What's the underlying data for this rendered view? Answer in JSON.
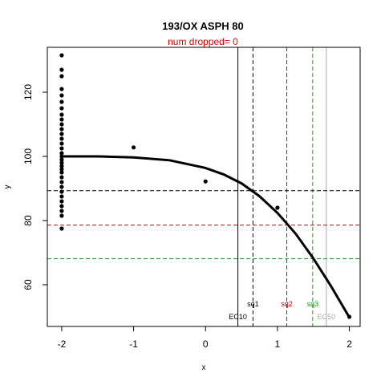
{
  "chart_data": {
    "type": "scatter",
    "title": "193/OX ASPH 80",
    "subtitle": "num dropped= 0",
    "xlabel": "x",
    "ylabel": "y",
    "xlim": [
      -2.2,
      2.15
    ],
    "ylim": [
      47,
      134
    ],
    "x_ticks": [
      -2,
      -1,
      0,
      1,
      2
    ],
    "y_ticks": [
      60,
      80,
      100,
      120
    ],
    "grid": false,
    "points": [
      {
        "x": -2,
        "y": 131.5
      },
      {
        "x": -2,
        "y": 127
      },
      {
        "x": -2,
        "y": 125
      },
      {
        "x": -2,
        "y": 121
      },
      {
        "x": -2,
        "y": 119
      },
      {
        "x": -2,
        "y": 117
      },
      {
        "x": -2,
        "y": 115
      },
      {
        "x": -2,
        "y": 113
      },
      {
        "x": -2,
        "y": 111.5
      },
      {
        "x": -2,
        "y": 110
      },
      {
        "x": -2,
        "y": 108.5
      },
      {
        "x": -2,
        "y": 107
      },
      {
        "x": -2,
        "y": 105.5
      },
      {
        "x": -2,
        "y": 104
      },
      {
        "x": -2,
        "y": 102.5
      },
      {
        "x": -2,
        "y": 101
      },
      {
        "x": -2,
        "y": 100
      },
      {
        "x": -2,
        "y": 99
      },
      {
        "x": -2,
        "y": 98
      },
      {
        "x": -2,
        "y": 97
      },
      {
        "x": -2,
        "y": 96
      },
      {
        "x": -2,
        "y": 95
      },
      {
        "x": -2,
        "y": 93.5
      },
      {
        "x": -2,
        "y": 92
      },
      {
        "x": -2,
        "y": 90.5
      },
      {
        "x": -2,
        "y": 89
      },
      {
        "x": -2,
        "y": 87.5
      },
      {
        "x": -2,
        "y": 86
      },
      {
        "x": -2,
        "y": 84.5
      },
      {
        "x": -2,
        "y": 83
      },
      {
        "x": -2,
        "y": 81.5
      },
      {
        "x": -2,
        "y": 77.5
      },
      {
        "x": -1,
        "y": 102.8
      },
      {
        "x": 0,
        "y": 92.2
      },
      {
        "x": 1,
        "y": 84
      },
      {
        "x": 2,
        "y": 50
      }
    ],
    "fit_curve": [
      {
        "x": -2,
        "y": 100
      },
      {
        "x": -1.5,
        "y": 100
      },
      {
        "x": -1,
        "y": 99.7
      },
      {
        "x": -0.5,
        "y": 98.8
      },
      {
        "x": 0,
        "y": 96.4
      },
      {
        "x": 0.25,
        "y": 94.4
      },
      {
        "x": 0.5,
        "y": 91.6
      },
      {
        "x": 0.75,
        "y": 87.6
      },
      {
        "x": 1,
        "y": 82.4
      },
      {
        "x": 1.25,
        "y": 76
      },
      {
        "x": 1.5,
        "y": 68.2
      },
      {
        "x": 1.75,
        "y": 59.4
      },
      {
        "x": 2,
        "y": 49.8
      }
    ],
    "hlines": [
      {
        "y": 89.3,
        "color": "#000000",
        "style": "dashed"
      },
      {
        "y": 78.6,
        "color": "#cc0000",
        "style": "dashed"
      },
      {
        "y": 68.1,
        "color": "#00aa00",
        "style": "dashed"
      }
    ],
    "vlines": [
      {
        "x": 0.45,
        "label": "EC10",
        "color": "#000000",
        "style": "solid"
      },
      {
        "x": 0.66,
        "label": "sq1",
        "color": "#000000",
        "style": "dashed"
      },
      {
        "x": 1.13,
        "label": "sq2",
        "color": "#cc0000",
        "style": "dashed"
      },
      {
        "x": 1.49,
        "label": "sq3",
        "color": "#00aa00",
        "style": "dashed"
      },
      {
        "x": 1.68,
        "label": "EC50",
        "color": "#aaaaaa",
        "style": "solid"
      }
    ]
  }
}
